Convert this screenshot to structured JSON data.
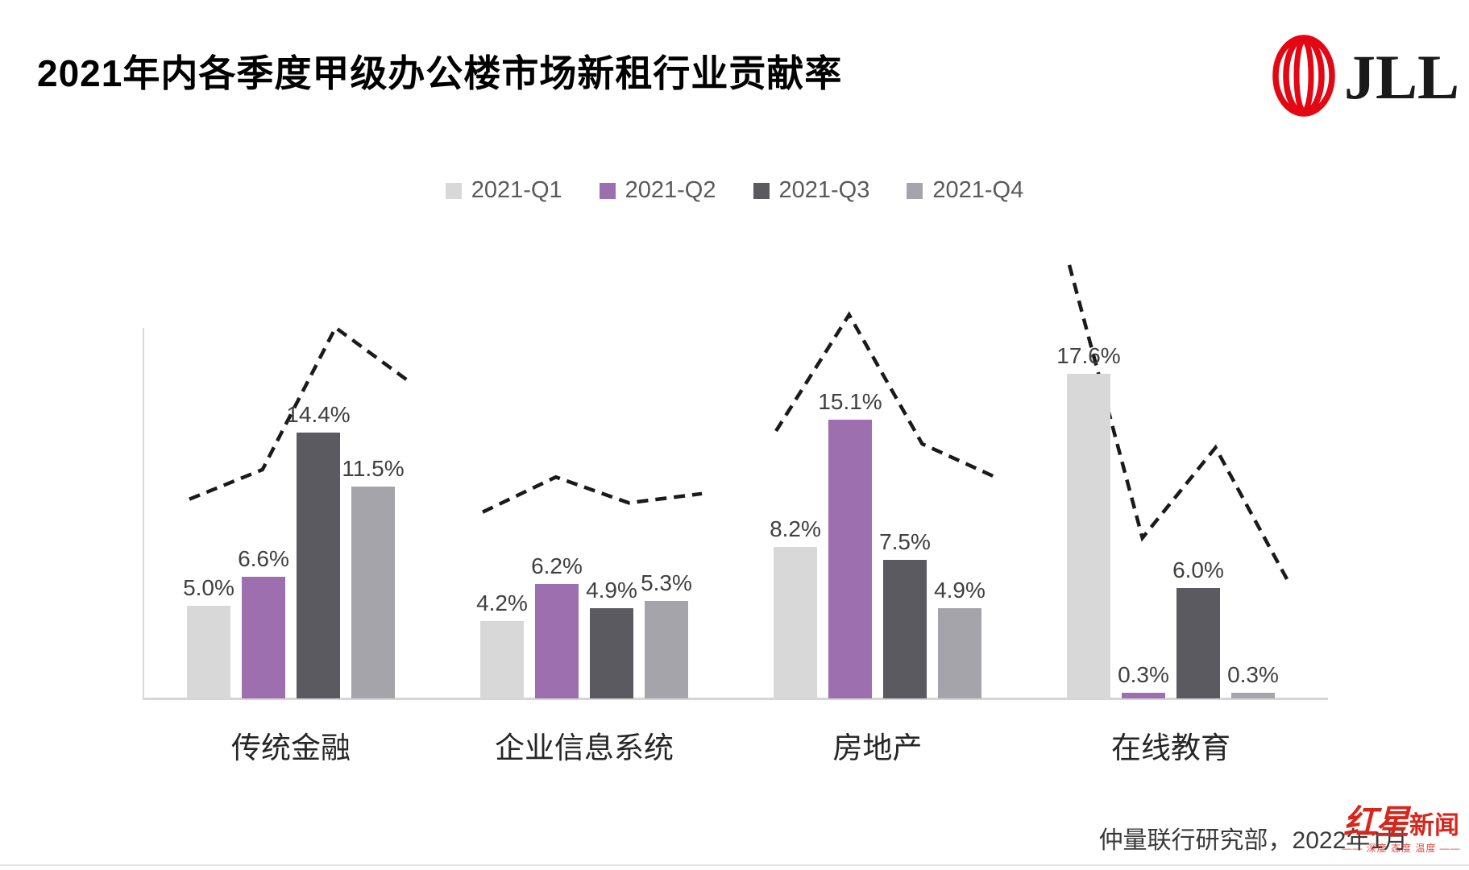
{
  "page": {
    "title": "2021年内各季度甲级办公楼市场新租行业贡献率",
    "source_note": "仲量联行研究部，2022年1月"
  },
  "brand": {
    "jll_logo_text": "JLL",
    "jll_red": "#e30613"
  },
  "watermark": {
    "name_script": "红星",
    "name_block": "新闻",
    "tagline": "—— 深度 态度 温度 ——",
    "color": "#d7271d"
  },
  "chart_data": {
    "type": "bar",
    "title": "2021年内各季度甲级办公楼市场新租行业贡献率",
    "unit": "%",
    "categories": [
      "传统金融",
      "企业信息系统",
      "房地产",
      "在线教育"
    ],
    "series": [
      {
        "name": "2021-Q1",
        "color": "#d8d8d8",
        "values": [
          5.0,
          4.2,
          8.2,
          17.6
        ],
        "labels": [
          "5.0%",
          "4.2%",
          "8.2%",
          "17.6%"
        ]
      },
      {
        "name": "2021-Q2",
        "color": "#9e6fae",
        "values": [
          6.6,
          6.2,
          15.1,
          0.3
        ],
        "labels": [
          "6.6%",
          "6.2%",
          "15.1%",
          "0.3%"
        ]
      },
      {
        "name": "2021-Q3",
        "color": "#5b5a60",
        "values": [
          14.4,
          4.9,
          7.5,
          6.0
        ],
        "labels": [
          "14.4%",
          "4.9%",
          "7.5%",
          "6.0%"
        ]
      },
      {
        "name": "2021-Q4",
        "color": "#a5a4aa",
        "values": [
          11.5,
          5.3,
          4.9,
          0.3
        ],
        "labels": [
          "11.5%",
          "5.3%",
          "4.9%",
          "0.3%"
        ]
      }
    ],
    "dashed_trend_line": {
      "style": "dashed",
      "color": "#1a1a1a",
      "note": "unlabeled dashed overlay line, values estimated from pixels",
      "values_estimated_pct": [
        [
          10.8,
          12.4,
          20.1,
          17.2
        ],
        [
          10.1,
          12.0,
          10.6,
          11.1
        ],
        [
          14.5,
          20.8,
          13.8,
          12.0
        ],
        [
          23.5,
          8.7,
          13.6,
          6.3
        ]
      ]
    },
    "ylim": [
      0,
      20
    ],
    "grid": false,
    "value_labels": true,
    "legend_position": "top-center"
  }
}
